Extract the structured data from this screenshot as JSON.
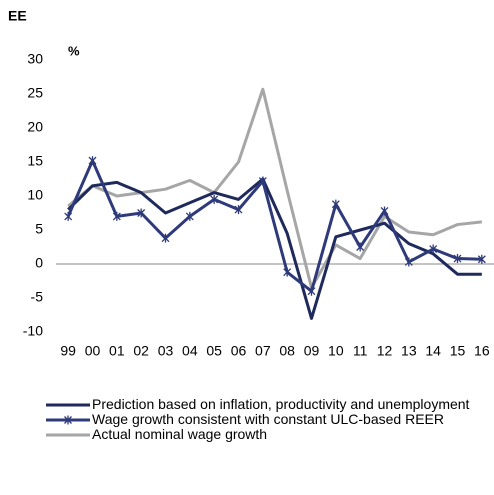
{
  "chart_data": {
    "type": "line",
    "title": "EE",
    "y_label": "%",
    "categories": [
      "99",
      "00",
      "01",
      "02",
      "03",
      "04",
      "05",
      "06",
      "07",
      "08",
      "09",
      "10",
      "11",
      "12",
      "13",
      "14",
      "15",
      "16"
    ],
    "series": [
      {
        "name": "Prediction based on inflation, productivity and unemployment",
        "color": "#1f2a5c",
        "marker": "none",
        "values": [
          8,
          11.5,
          12,
          10.5,
          7.5,
          9,
          10.5,
          9.5,
          12.5,
          4.5,
          -8,
          4,
          5,
          6,
          3,
          1.5,
          -1.5,
          -1.5
        ]
      },
      {
        "name": "Wage growth consistent with constant ULC-based REER",
        "color": "#2e3a7a",
        "marker": "x",
        "values": [
          7,
          15.2,
          7,
          7.5,
          3.8,
          7,
          9.5,
          8,
          12.2,
          -1.2,
          -4,
          8.8,
          2.5,
          7.8,
          0.3,
          2.2,
          0.8,
          0.7
        ]
      },
      {
        "name": "Actual nominal wage growth",
        "color": "#a6a6a6",
        "marker": "none",
        "values": [
          8.5,
          11.5,
          10,
          10.5,
          11,
          12.3,
          10.5,
          15,
          25.7,
          10.8,
          -3.5,
          2.8,
          0.8,
          7,
          4.7,
          4.3,
          5.8,
          6.2
        ]
      }
    ],
    "ylim": [
      -10,
      30
    ],
    "yticks": [
      -10,
      -5,
      0,
      5,
      10,
      15,
      20,
      25,
      30
    ]
  }
}
